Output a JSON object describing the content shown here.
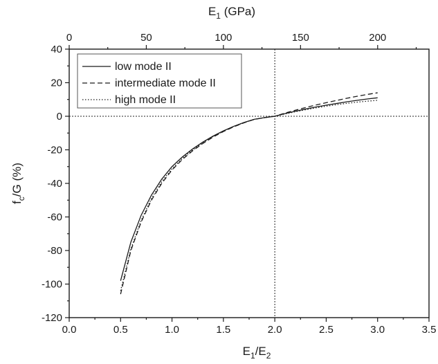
{
  "chart_data": {
    "type": "line",
    "xlabel": {
      "main": "E",
      "sub1": "1",
      "mid": "/E",
      "sub2": "2"
    },
    "ylabel": {
      "main": "f",
      "sub": "c",
      "rest": "/G (%)"
    },
    "top_xlabel": {
      "main": "E",
      "sub": "1",
      "rest": " (GPa)"
    },
    "xlim": [
      0,
      3.5
    ],
    "ylim": [
      -120,
      40
    ],
    "top_xlim": [
      0,
      233.3
    ],
    "x_ticks": [
      "0.0",
      "0.5",
      "1.0",
      "1.5",
      "2.0",
      "2.5",
      "3.0",
      "3.5"
    ],
    "y_ticks": [
      "-120",
      "-100",
      "-80",
      "-60",
      "-40",
      "-20",
      "0",
      "20",
      "40"
    ],
    "top_x_ticks": [
      "0",
      "50",
      "100",
      "150",
      "200"
    ],
    "reference_lines": {
      "x": 2.0,
      "y": 0
    },
    "legend_position": "top-left",
    "series": [
      {
        "name": "low mode II",
        "style": "solid",
        "x": [
          0.5,
          0.6,
          0.7,
          0.8,
          0.9,
          1.0,
          1.1,
          1.2,
          1.3,
          1.4,
          1.5,
          1.6,
          1.7,
          1.8,
          1.9,
          2.0,
          2.1,
          2.2,
          2.3,
          2.4,
          2.5,
          2.6,
          2.7,
          2.8,
          2.9,
          3.0
        ],
        "y": [
          -98,
          -75,
          -59,
          -47,
          -37.5,
          -30,
          -24.3,
          -19.5,
          -15.4,
          -11.8,
          -8.7,
          -6.0,
          -3.7,
          -1.8,
          -0.8,
          0,
          1.6,
          3.0,
          4.3,
          5.5,
          6.6,
          7.6,
          8.6,
          9.5,
          10.3,
          11.0
        ]
      },
      {
        "name": "intermediate mode II",
        "style": "dashed",
        "x": [
          0.5,
          0.6,
          0.7,
          0.8,
          0.9,
          1.0,
          1.1,
          1.2,
          1.3,
          1.4,
          1.5,
          1.6,
          1.7,
          1.8,
          1.9,
          2.0,
          2.1,
          2.2,
          2.3,
          2.4,
          2.5,
          2.6,
          2.7,
          2.8,
          2.9,
          3.0
        ],
        "y": [
          -106,
          -80,
          -63,
          -50,
          -40,
          -32,
          -25.8,
          -20.6,
          -16.2,
          -12.4,
          -9.1,
          -6.3,
          -3.9,
          -1.9,
          -0.8,
          0,
          1.9,
          3.6,
          5.2,
          6.7,
          8.1,
          9.4,
          10.7,
          11.9,
          13.0,
          14.0
        ]
      },
      {
        "name": "high mode II",
        "style": "dotted",
        "x": [
          0.5,
          0.6,
          0.7,
          0.8,
          0.9,
          1.0,
          1.1,
          1.2,
          1.3,
          1.4,
          1.5,
          1.6,
          1.7,
          1.8,
          1.9,
          2.0,
          2.1,
          2.2,
          2.3,
          2.4,
          2.5,
          2.6,
          2.7,
          2.8,
          2.9,
          3.0
        ],
        "y": [
          -104,
          -79,
          -62,
          -49,
          -39,
          -31.3,
          -25.2,
          -20.1,
          -15.8,
          -12.1,
          -8.9,
          -6.1,
          -3.8,
          -1.85,
          -0.8,
          0,
          1.4,
          2.7,
          3.9,
          5.0,
          6.0,
          6.9,
          7.7,
          8.4,
          9.0,
          9.5
        ]
      }
    ]
  }
}
